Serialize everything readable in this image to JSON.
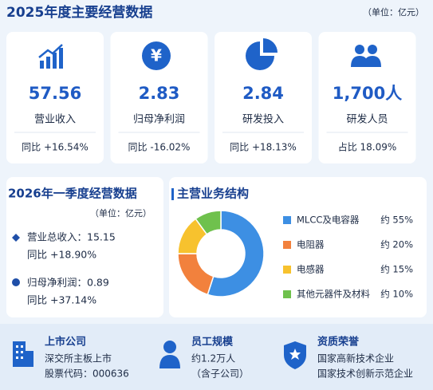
{
  "header": {
    "title": "2025年度主要经营数据",
    "unit": "（单位：亿元）"
  },
  "kpis": [
    {
      "value": "57.56",
      "label": "营业收入",
      "change": "同比 +16.54%"
    },
    {
      "value": "2.83",
      "label": "归母净利润",
      "change": "同比 -16.02%"
    },
    {
      "value": "2.84",
      "label": "研发投入",
      "change": "同比 +18.13%"
    },
    {
      "value": "1,700人",
      "label": "研发人员",
      "change": "占比 18.09%"
    }
  ],
  "q1": {
    "title": "2026年一季度经营数据",
    "unit": "（单位：亿元）",
    "items": [
      {
        "label": "营业总收入：15.15",
        "change": "同比 +18.90%"
      },
      {
        "label": "归母净利润：0.89",
        "change": "同比 +37.14%"
      }
    ]
  },
  "chart_data": {
    "type": "pie",
    "title": "主营业务结构",
    "categories": [
      "MLCC及电容器",
      "电阻器",
      "电感器",
      "其他元器件及材料"
    ],
    "values": [
      55,
      20,
      15,
      10
    ],
    "value_labels": [
      "约 55%",
      "约 20%",
      "约 15%",
      "约 10%"
    ],
    "colors": [
      "#3d8fe3",
      "#f2813d",
      "#f7c22e",
      "#6fc14d"
    ]
  },
  "footer": [
    {
      "title": "上市公司",
      "lines": [
        "深交所主板上市",
        "股票代码：000636"
      ]
    },
    {
      "title": "员工规模",
      "lines": [
        "约1.2万人",
        "（含子公司）"
      ]
    },
    {
      "title": "资质荣誉",
      "lines": [
        "国家高新技术企业",
        "国家技术创新示范企业"
      ]
    }
  ]
}
